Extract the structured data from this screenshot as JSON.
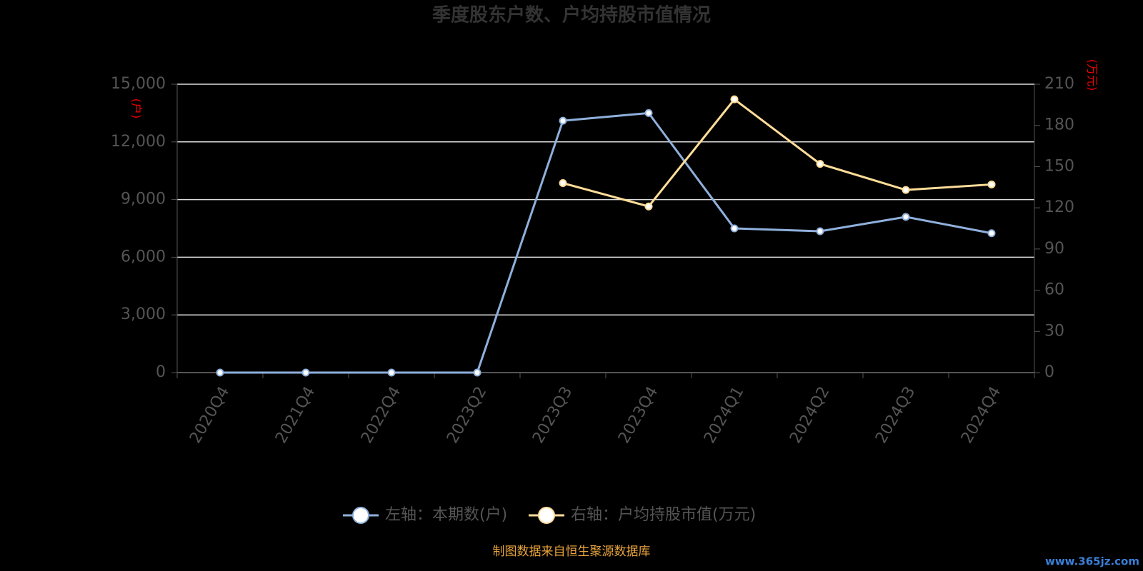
{
  "chart_data": {
    "type": "line",
    "title": "季度股东户数、户均持股市值情况",
    "y_label": "(户)",
    "y2_label": "(万元)",
    "categories": [
      "2020Q4",
      "2021Q4",
      "2022Q4",
      "2023Q2",
      "2023Q3",
      "2023Q4",
      "2024Q1",
      "2024Q2",
      "2024Q3",
      "2024Q4"
    ],
    "series": [
      {
        "name": "左轴：本期数(户)",
        "color": "#8fb0dc",
        "values": [
          0,
          0,
          0,
          0,
          13100,
          13500,
          7500,
          7350,
          8100,
          7250
        ]
      },
      {
        "name": "右轴：户均持股市值(万元)",
        "color": "#ffdd99",
        "axis": "y2",
        "values": [
          null,
          null,
          null,
          null,
          138,
          121,
          199,
          152,
          133,
          137
        ]
      }
    ],
    "ylim": [
      0,
      15000
    ],
    "yticks": [
      0,
      {
        "value": 3000,
        "label": "3,000"
      },
      {
        "value": 6000,
        "label": "6,000"
      },
      {
        "value": 9000,
        "label": "9,000"
      },
      {
        "value": 12000,
        "label": "12,000"
      },
      {
        "value": 15000,
        "label": "15,000"
      }
    ],
    "y2lim": [
      0,
      210
    ],
    "y2ticks": [
      0,
      30,
      60,
      90,
      120,
      150,
      180,
      210
    ],
    "grid": true,
    "legend": "bottom",
    "source": "制图数据来自恒生聚源数据库",
    "watermark": "www.365jz.com"
  }
}
